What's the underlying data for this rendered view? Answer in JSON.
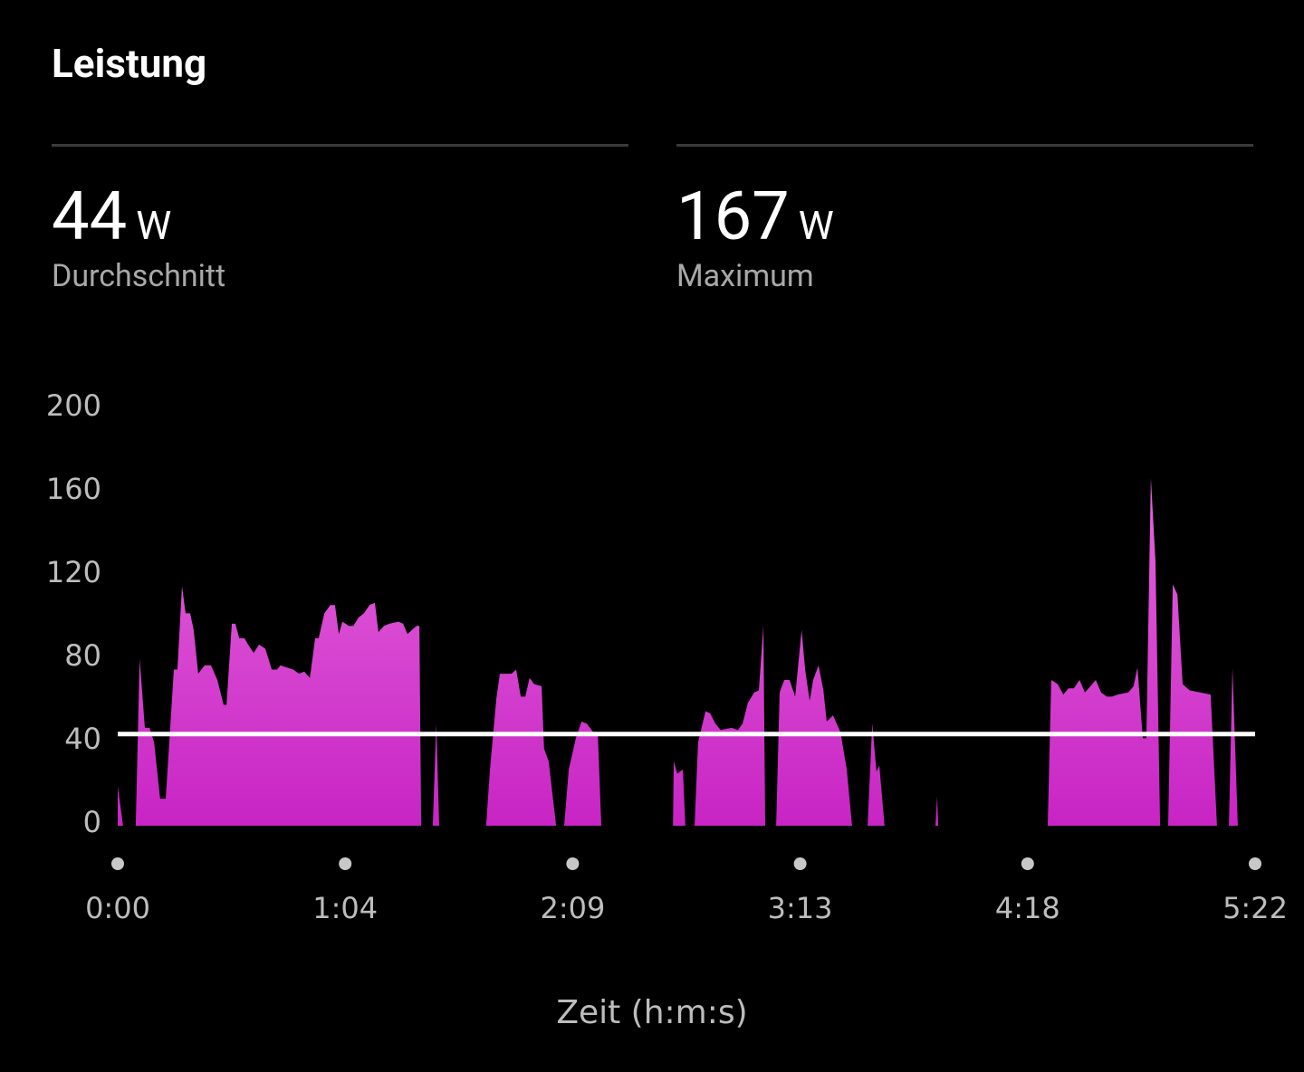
{
  "header": {
    "title": "Leistung"
  },
  "summary": [
    {
      "value": 44,
      "unit": "W",
      "label": "Durchschnitt"
    },
    {
      "value": 167,
      "unit": "W",
      "label": "Maximum"
    }
  ],
  "chart_data": {
    "type": "area",
    "x_label": "Zeit (h:m:s)",
    "xlim": [
      0,
      322
    ],
    "xticks": [
      {
        "value": 0,
        "label": "0:00"
      },
      {
        "value": 64.4,
        "label": "1:04"
      },
      {
        "value": 128.8,
        "label": "2:09"
      },
      {
        "value": 193.2,
        "label": "3:13"
      },
      {
        "value": 257.6,
        "label": "4:18"
      },
      {
        "value": 322,
        "label": "5:22"
      }
    ],
    "ylim": [
      0,
      200
    ],
    "yticks": [
      0,
      40,
      80,
      120,
      160,
      200
    ],
    "series": [
      {
        "color": "#d53fce",
        "x": [
          0.0,
          1.5,
          null,
          5.1,
          6.2,
          7.7,
          9.0,
          10.3,
          12.0,
          13.6,
          15.9,
          16.9,
          18.2,
          19.2,
          20.5,
          21.5,
          22.8,
          24.6,
          26.4,
          28.2,
          30.0,
          30.8,
          32.3,
          33.3,
          34.4,
          35.9,
          36.9,
          38.5,
          40.0,
          41.8,
          43.6,
          45.1,
          46.1,
          47.9,
          49.7,
          51.3,
          52.8,
          54.4,
          55.9,
          56.9,
          58.5,
          60.2,
          61.5,
          62.6,
          63.6,
          65.4,
          66.7,
          68.2,
          69.7,
          71.3,
          72.8,
          73.8,
          75.4,
          76.9,
          79.5,
          80.8,
          82.0,
          83.3,
          84.6,
          85.4,
          85.9,
          null,
          89.2,
          90.2,
          91.0,
          null,
          104.3,
          105.4,
          107.2,
          108.2,
          111.5,
          112.8,
          114.1,
          115.4,
          116.6,
          117.9,
          120.0,
          120.7,
          122.0,
          124.1,
          null,
          126.4,
          127.7,
          129.7,
          131.3,
          132.8,
          134.6,
          135.9,
          136.9,
          null,
          157.2,
          157.4,
          158.4,
          160.0,
          160.7,
          null,
          163.3,
          164.3,
          166.4,
          167.7,
          169.2,
          170.7,
          173.8,
          175.6,
          176.9,
          178.4,
          180.2,
          181.5,
          182.8,
          183.3,
          null,
          186.4,
          187.4,
          188.7,
          190.2,
          191.8,
          193.6,
          194.6,
          195.9,
          196.9,
          198.4,
          199.8,
          200.7,
          202.5,
          204.6,
          206.4,
          207.9,
          null,
          212.3,
          213.6,
          214.8,
          215.6,
          217.1,
          null,
          231.5,
          232.0,
          232.3,
          null,
          263.3,
          264.3,
          266.1,
          267.7,
          269.2,
          270.7,
          272.3,
          273.8,
          275.4,
          276.9,
          278.4,
          280.0,
          281.5,
          283.1,
          286.1,
          287.6,
          288.7,
          290.2,
          291.2,
          292.5,
          293.8,
          295.1,
          null,
          297.4,
          298.7,
          300.0,
          301.5,
          303.5,
          309.4,
          311.2,
          null,
          314.6,
          315.6,
          317.1
        ],
        "values": [
          19,
          0,
          null,
          0,
          80,
          47,
          47,
          40,
          13,
          13,
          75,
          75,
          115,
          102,
          102,
          94,
          73,
          77,
          77,
          70,
          58,
          58,
          97,
          97,
          90,
          90,
          87,
          83,
          87,
          85,
          75,
          75,
          77,
          76,
          75,
          73,
          74,
          71,
          90,
          90,
          102,
          106,
          106,
          92,
          98,
          96,
          96,
          100,
          102,
          106,
          107,
          93,
          96,
          97,
          98,
          97,
          92,
          94,
          96,
          96,
          0,
          null,
          0,
          49,
          0,
          null,
          0,
          27,
          61,
          73,
          73,
          75,
          62,
          62,
          71,
          68,
          67,
          37,
          31,
          0,
          null,
          0,
          27,
          42,
          50,
          49,
          45,
          45,
          0,
          null,
          0,
          31,
          25,
          27,
          0,
          null,
          0,
          40,
          55,
          54,
          49,
          46,
          47,
          46,
          49,
          59,
          64,
          65,
          96,
          0,
          null,
          0,
          64,
          70,
          70,
          62,
          94,
          75,
          60,
          70,
          77,
          65,
          50,
          53,
          45,
          27,
          0,
          null,
          0,
          49,
          26,
          29,
          0,
          null,
          0,
          14,
          0,
          null,
          0,
          70,
          68,
          63,
          66,
          66,
          70,
          64,
          67,
          70,
          64,
          62,
          62,
          63,
          64,
          67,
          76,
          42,
          42,
          167,
          127,
          0,
          null,
          0,
          116,
          111,
          68,
          65,
          63,
          0,
          null,
          0,
          76,
          0
        ]
      }
    ]
  }
}
